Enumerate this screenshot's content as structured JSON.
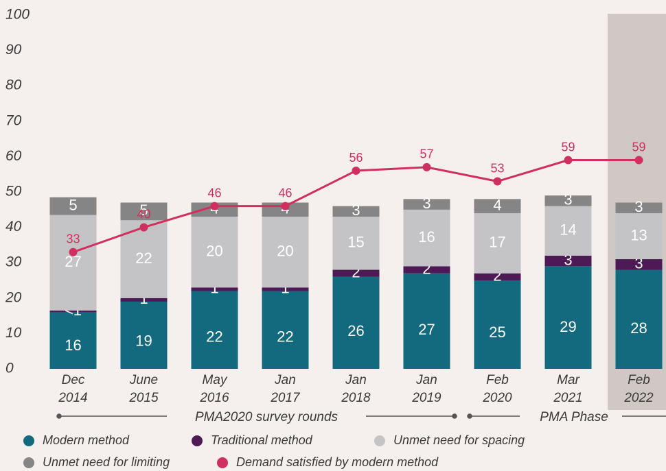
{
  "chart_data": {
    "type": "stacked_bar_line",
    "categories": [
      [
        "Dec",
        "2014"
      ],
      [
        "June",
        "2015"
      ],
      [
        "May",
        "2016"
      ],
      [
        "Jan",
        "2017"
      ],
      [
        "Jan",
        "2018"
      ],
      [
        "Jan",
        "2019"
      ],
      [
        "Feb",
        "2020"
      ],
      [
        "Mar",
        "2021"
      ],
      [
        "Feb",
        "2022"
      ]
    ],
    "series": [
      {
        "name": "Modern method",
        "color": "#136a7e",
        "values": [
          16,
          19,
          22,
          22,
          26,
          27,
          25,
          29,
          28
        ]
      },
      {
        "name": "Traditional method",
        "color": "#4e1a55",
        "values": [
          0.5,
          1,
          1,
          1,
          2,
          2,
          2,
          3,
          3
        ],
        "value_labels": [
          "<1",
          "1",
          "1",
          "1",
          "2",
          "2",
          "2",
          "3",
          "3"
        ]
      },
      {
        "name": "Unmet need for spacing",
        "color": "#c4c3c6",
        "values": [
          27,
          22,
          20,
          20,
          15,
          16,
          17,
          14,
          13
        ]
      },
      {
        "name": "Unmet need for limiting",
        "color": "#858585",
        "values": [
          5,
          5,
          4,
          4,
          3,
          3,
          4,
          3,
          3
        ]
      },
      {
        "name": "Demand satisfied by modern method",
        "color": "#d0305f",
        "type": "line",
        "values": [
          33,
          40,
          46,
          46,
          56,
          57,
          53,
          59,
          59
        ]
      }
    ],
    "ylim": [
      0,
      100
    ],
    "yticks": [
      0,
      10,
      20,
      30,
      40,
      50,
      60,
      70,
      80,
      90,
      100
    ],
    "grid": false,
    "annotations": [
      "PMA2020 survey rounds",
      "PMA Phase"
    ]
  }
}
